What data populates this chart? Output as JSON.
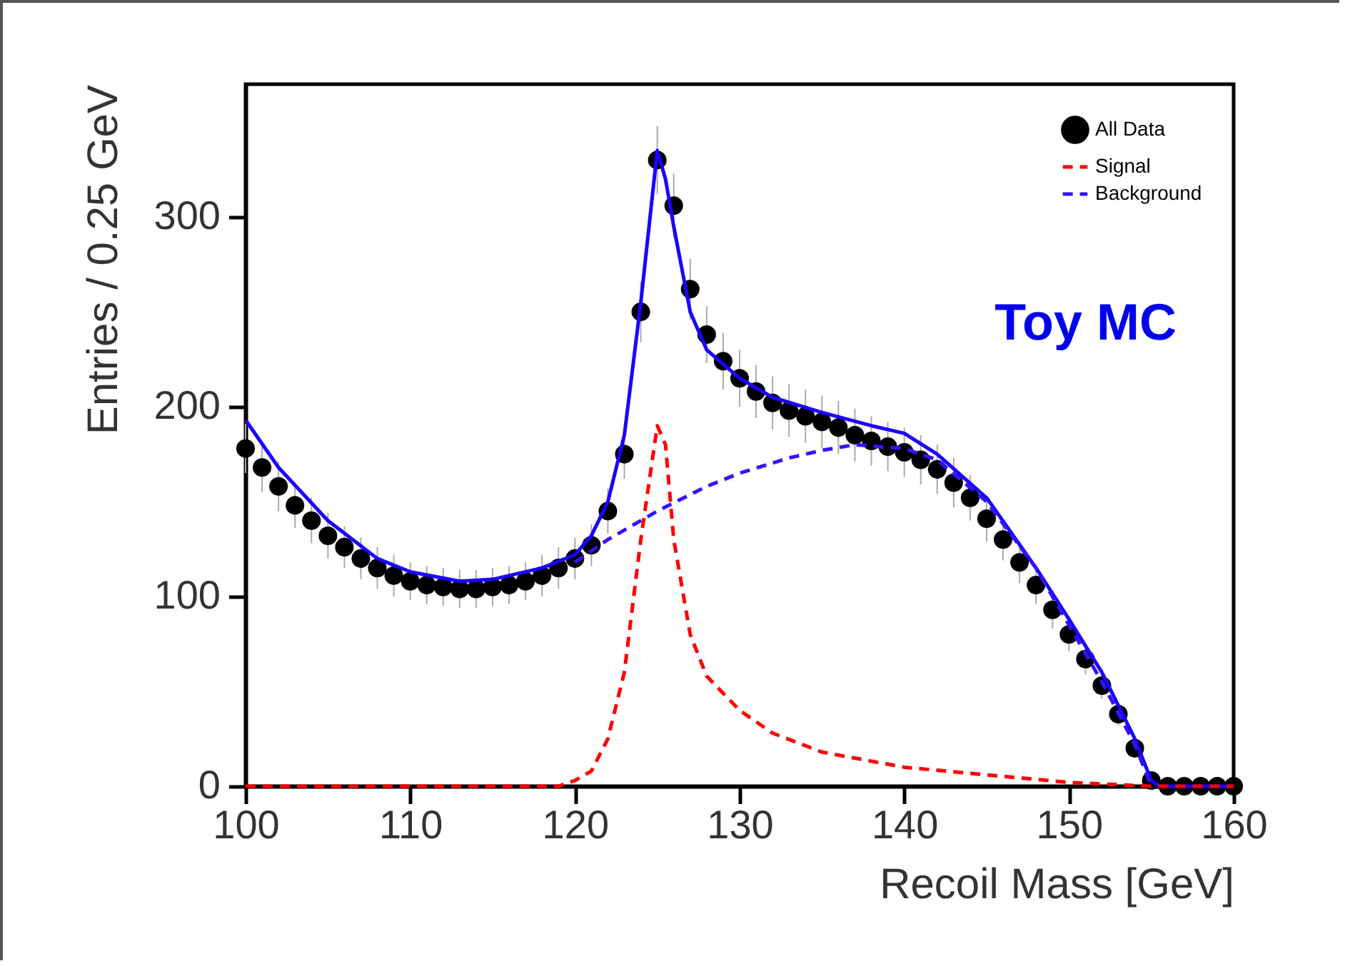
{
  "chart_data": {
    "type": "scatter",
    "xlabel": "Recoil Mass [GeV]",
    "ylabel": "Entries / 0.25 GeV",
    "annotations": [
      "Toy MC"
    ],
    "xlim": [
      100,
      160
    ],
    "xticks": [
      100,
      110,
      120,
      130,
      140,
      150,
      160
    ],
    "ylim": [
      0,
      370
    ],
    "yticks": [
      0,
      100,
      200,
      300
    ],
    "grid": false,
    "legend": "top right",
    "series": [
      {
        "name": "All Data",
        "type": "scatter",
        "marker": "circle",
        "color": "#000000",
        "x": [
          100,
          101,
          102,
          103,
          104,
          105,
          106,
          107,
          108,
          109,
          110,
          111,
          112,
          113,
          114,
          115,
          116,
          117,
          118,
          119,
          120,
          121,
          122,
          123,
          124,
          125,
          126,
          127,
          128,
          129,
          130,
          131,
          132,
          133,
          134,
          135,
          136,
          137,
          138,
          139,
          140,
          141,
          142,
          143,
          144,
          145,
          146,
          147,
          148,
          149,
          150,
          151,
          152,
          153,
          154,
          155,
          156,
          157,
          158,
          159,
          160
        ],
        "values": [
          178,
          168,
          158,
          148,
          140,
          132,
          126,
          120,
          115,
          111,
          108,
          106,
          105,
          104,
          104,
          105,
          106,
          108,
          111,
          115,
          120,
          127,
          145,
          175,
          250,
          330,
          306,
          262,
          238,
          224,
          215,
          208,
          202,
          198,
          195,
          192,
          189,
          185,
          182,
          179,
          176,
          172,
          167,
          160,
          152,
          141,
          130,
          118,
          106,
          93,
          80,
          67,
          53,
          38,
          20,
          3,
          0,
          0,
          0,
          0,
          0
        ],
        "errors": [
          13,
          13,
          13,
          12,
          12,
          12,
          11,
          11,
          11,
          11,
          10,
          10,
          10,
          10,
          10,
          10,
          10,
          10,
          11,
          11,
          11,
          11,
          12,
          13,
          16,
          18,
          17,
          16,
          15,
          15,
          15,
          14,
          14,
          14,
          14,
          14,
          14,
          14,
          13,
          13,
          13,
          13,
          13,
          13,
          12,
          12,
          11,
          11,
          10,
          10,
          9,
          8,
          7,
          6,
          4,
          2,
          0,
          0,
          0,
          0,
          0
        ]
      },
      {
        "type": "line",
        "color": "#1a00ff",
        "line_style": "solid",
        "x": [
          100,
          102,
          105,
          108,
          110,
          113,
          115,
          118,
          120,
          121,
          122,
          123,
          124,
          125,
          125.5,
          126,
          127,
          128,
          130,
          132,
          135,
          138,
          140,
          142,
          145,
          148,
          150,
          152,
          154,
          155,
          155.5,
          160
        ],
        "values": [
          193,
          168,
          140,
          120,
          113,
          108,
          109,
          115,
          122,
          132,
          150,
          185,
          255,
          335,
          320,
          295,
          250,
          230,
          215,
          205,
          197,
          190,
          186,
          175,
          152,
          115,
          88,
          60,
          25,
          3,
          0,
          0
        ]
      },
      {
        "name": "Signal",
        "type": "line",
        "color": "#ff0000",
        "line_style": "dashed",
        "x": [
          100,
          110,
          119,
          120,
          121,
          122,
          123,
          124,
          125,
          125.5,
          126,
          127,
          128,
          130,
          132,
          135,
          140,
          145,
          150,
          155,
          160
        ],
        "values": [
          0,
          0,
          0,
          3,
          8,
          25,
          60,
          130,
          190,
          180,
          130,
          80,
          58,
          40,
          28,
          18,
          10,
          6,
          2,
          0,
          0
        ]
      },
      {
        "name": "Background",
        "type": "line",
        "color": "#3311ff",
        "line_style": "dashed",
        "x": [
          120,
          122,
          125,
          128,
          130,
          133,
          135,
          137,
          140,
          142,
          145,
          148,
          150,
          152,
          154,
          155
        ],
        "values": [
          118,
          130,
          145,
          158,
          165,
          173,
          177,
          180,
          178,
          172,
          150,
          115,
          85,
          55,
          22,
          0
        ]
      }
    ]
  }
}
